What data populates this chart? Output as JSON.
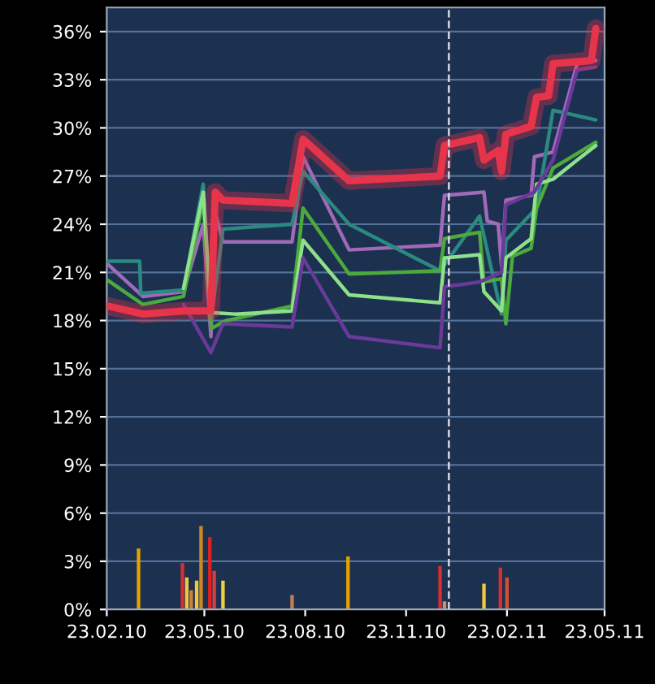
{
  "chart_data": {
    "type": "line",
    "ylim": [
      0,
      37.5
    ],
    "xlim": [
      "2010-02-23",
      "2011-05-23"
    ],
    "yticks": [
      {
        "value": 0,
        "label": "0%"
      },
      {
        "value": 3,
        "label": "3%"
      },
      {
        "value": 6,
        "label": "6%"
      },
      {
        "value": 9,
        "label": "9%"
      },
      {
        "value": 12,
        "label": "12%"
      },
      {
        "value": 15,
        "label": "15%"
      },
      {
        "value": 18,
        "label": "18%"
      },
      {
        "value": 21,
        "label": "21%"
      },
      {
        "value": 24,
        "label": "24%"
      },
      {
        "value": 27,
        "label": "27%"
      },
      {
        "value": 30,
        "label": "30%"
      },
      {
        "value": 33,
        "label": "33%"
      },
      {
        "value": 36,
        "label": "36%"
      }
    ],
    "xticks": [
      {
        "value": "2010-02-23",
        "label": "23.02.10"
      },
      {
        "value": "2010-05-23",
        "label": "23.05.10"
      },
      {
        "value": "2010-08-23",
        "label": "23.08.10"
      },
      {
        "value": "2010-11-23",
        "label": "23.11.10"
      },
      {
        "value": "2011-02-23",
        "label": "23.02.11"
      },
      {
        "value": "2011-05-23",
        "label": "23.05.11"
      }
    ],
    "grid": "y",
    "marker": "none",
    "line_style": "solid",
    "ref_lines": [
      {
        "axis": "x",
        "value": "2011-01-01",
        "color": "#d8d8e0",
        "line_style": "dashed"
      }
    ],
    "series": [
      {
        "type": "bar",
        "x": [
          "2010-03-24",
          "2010-05-03",
          "2010-05-07",
          "2010-05-11",
          "2010-05-16",
          "2010-05-20",
          "2010-05-28",
          "2010-06-01",
          "2010-06-09",
          "2010-08-11",
          "2010-10-01",
          "2010-12-24",
          "2010-12-28",
          "2011-02-02",
          "2011-02-17",
          "2011-02-23"
        ],
        "values": [
          3.8,
          2.9,
          2.0,
          1.2,
          1.8,
          5.2,
          4.5,
          2.4,
          1.8,
          0.9,
          3.3,
          2.7,
          0.5,
          1.6,
          2.6,
          2.0
        ],
        "colors": [
          "#e8a000",
          "#d83030",
          "#f0c840",
          "#d08040",
          "#f0c840",
          "#d08820",
          "#e02020",
          "#d04040",
          "#f0d040",
          "#c08050",
          "#e8a000",
          "#d83030",
          "#d09060",
          "#f0c840",
          "#d83030",
          "#d05030"
        ]
      },
      {
        "color": "#a06ab8",
        "x": [
          "2010-02-24",
          "2010-03-28",
          "2010-05-04",
          "2010-05-22",
          "2010-05-29",
          "2010-06-02",
          "2010-06-09",
          "2010-08-11",
          "2010-08-21",
          "2010-10-02",
          "2010-12-24",
          "2010-12-28",
          "2011-02-02",
          "2011-02-05",
          "2011-02-15",
          "2011-02-18",
          "2011-02-22",
          "2011-03-17",
          "2011-03-20",
          "2011-04-06",
          "2011-04-28",
          "2011-05-15"
        ],
        "values": [
          21.5,
          19.5,
          19.8,
          24.0,
          17.0,
          24.7,
          22.9,
          22.9,
          28.2,
          22.4,
          22.7,
          25.8,
          26.0,
          24.2,
          24.0,
          21.4,
          25.5,
          25.8,
          28.2,
          28.5,
          34.0,
          34.2
        ]
      },
      {
        "color": "#2a8a80",
        "x": [
          "2010-02-24",
          "2010-03-25",
          "2010-03-26",
          "2010-05-04",
          "2010-05-22",
          "2010-05-29",
          "2010-06-09",
          "2010-08-11",
          "2010-08-21",
          "2010-10-02",
          "2010-12-24",
          "2011-01-29",
          "2011-02-18",
          "2011-02-22",
          "2011-03-22",
          "2011-04-06",
          "2011-05-15"
        ],
        "values": [
          21.7,
          21.7,
          19.7,
          19.9,
          26.5,
          18.0,
          23.7,
          24.0,
          27.3,
          24.0,
          21.1,
          24.5,
          18.4,
          23.0,
          25.0,
          31.1,
          30.5
        ]
      },
      {
        "color": "#4caa3c",
        "x": [
          "2010-02-24",
          "2010-03-28",
          "2010-05-04",
          "2010-05-22",
          "2010-05-29",
          "2010-06-12",
          "2010-08-11",
          "2010-08-21",
          "2010-10-02",
          "2010-12-24",
          "2010-12-28",
          "2011-01-29",
          "2011-02-02",
          "2011-02-18",
          "2011-02-22",
          "2011-02-28",
          "2011-03-17",
          "2011-03-22",
          "2011-04-06",
          "2011-05-15"
        ],
        "values": [
          20.5,
          19.0,
          19.5,
          25.5,
          17.5,
          18.0,
          18.9,
          25.0,
          20.9,
          21.1,
          23.1,
          23.5,
          20.4,
          20.6,
          17.8,
          22.0,
          22.5,
          25.0,
          27.5,
          29.1
        ]
      },
      {
        "color": "#8ee08a",
        "x": [
          "2010-05-04",
          "2010-05-22",
          "2010-05-29",
          "2010-06-20",
          "2010-08-11",
          "2010-08-21",
          "2010-10-02",
          "2010-12-24",
          "2010-12-28",
          "2011-01-29",
          "2011-02-02",
          "2011-02-18",
          "2011-02-22",
          "2011-03-17",
          "2011-03-22",
          "2011-04-06",
          "2011-04-28",
          "2011-05-15"
        ],
        "values": [
          20.0,
          26.0,
          18.5,
          18.4,
          18.6,
          23.0,
          19.6,
          19.1,
          21.9,
          22.1,
          19.8,
          18.6,
          21.9,
          23.1,
          26.5,
          26.8,
          28.0,
          28.9
        ]
      },
      {
        "color": "#6a3a9a",
        "x": [
          "2010-05-04",
          "2010-05-29",
          "2010-06-09",
          "2010-08-11",
          "2010-08-21",
          "2010-10-02",
          "2010-12-24",
          "2010-12-28",
          "2011-01-29",
          "2011-02-18",
          "2011-02-22",
          "2011-03-20",
          "2011-04-06",
          "2011-04-28",
          "2011-05-15"
        ],
        "values": [
          19.0,
          16.0,
          17.8,
          17.6,
          21.9,
          17.0,
          16.3,
          20.1,
          20.4,
          21.0,
          25.2,
          26.0,
          28.0,
          33.6,
          33.8
        ]
      },
      {
        "color": "#e8344a",
        "x": [
          "2010-02-24",
          "2010-03-28",
          "2010-05-04",
          "2010-05-29",
          "2010-06-02",
          "2010-06-09",
          "2010-08-11",
          "2010-08-21",
          "2010-10-02",
          "2010-12-24",
          "2010-12-28",
          "2011-01-29",
          "2011-02-02",
          "2011-02-15",
          "2011-02-18",
          "2011-02-22",
          "2011-03-17",
          "2011-03-22",
          "2011-04-02",
          "2011-04-06",
          "2011-05-11",
          "2011-05-15"
        ],
        "values": [
          18.9,
          18.4,
          18.6,
          18.6,
          26.0,
          25.5,
          25.3,
          29.3,
          26.7,
          27.0,
          28.9,
          29.4,
          28.0,
          28.6,
          27.3,
          29.6,
          30.1,
          31.9,
          32.0,
          34.0,
          34.2,
          36.2
        ]
      }
    ]
  }
}
